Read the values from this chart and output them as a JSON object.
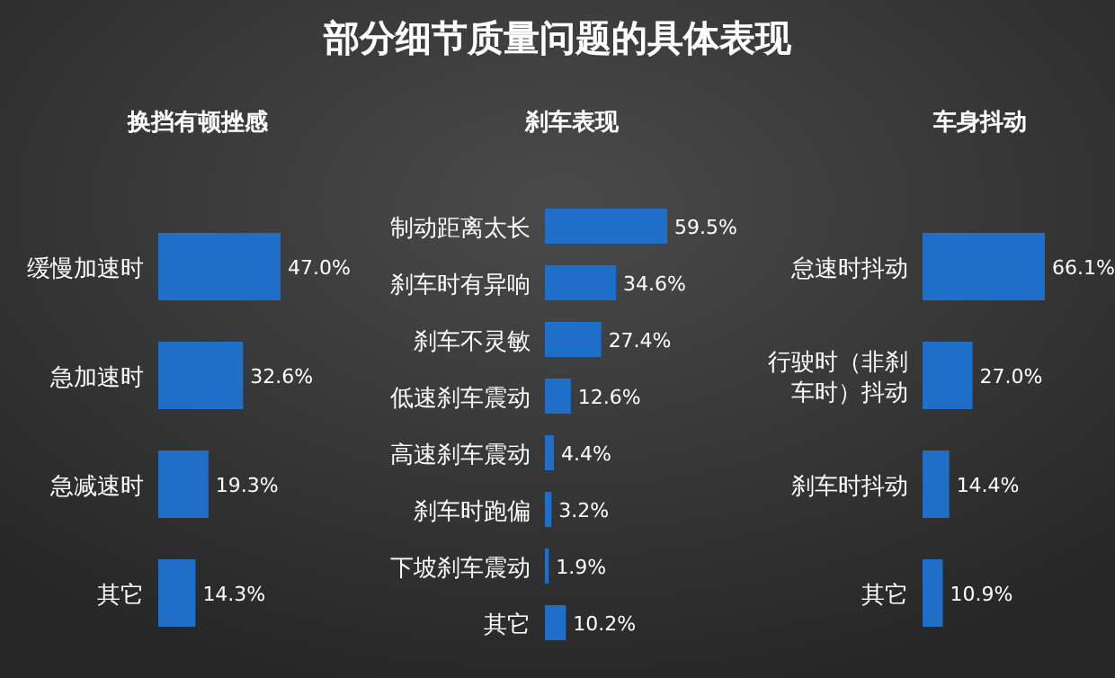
{
  "chart_data": [
    {
      "type": "bar",
      "orientation": "horizontal",
      "subtitle": "换挡有顿挫感",
      "categories": [
        "缓慢加速时",
        "急加速时",
        "急减速时",
        "其它"
      ],
      "values": [
        47.0,
        32.6,
        19.3,
        14.3
      ],
      "color": "#1f6fc8",
      "value_labels": [
        "47.0%",
        "32.6%",
        "19.3%",
        "14.3%"
      ]
    },
    {
      "type": "bar",
      "orientation": "horizontal",
      "title": "部分细节质量问题的具体表现",
      "subtitle": "刹车表现",
      "categories": [
        "制动距离太长",
        "刹车时有异响",
        "刹车不灵敏",
        "低速刹车震动",
        "高速刹车震动",
        "刹车时跑偏",
        "下坡刹车震动",
        "其它"
      ],
      "values": [
        59.5,
        34.6,
        27.4,
        12.6,
        4.4,
        3.2,
        1.9,
        10.2
      ],
      "color": "#1f6fc8",
      "value_labels": [
        "59.5%",
        "34.6%",
        "27.4%",
        "12.6%",
        "4.4%",
        "3.2%",
        "1.9%",
        "10.2%"
      ]
    },
    {
      "type": "bar",
      "orientation": "horizontal",
      "subtitle": "车身抖动",
      "categories": [
        "怠速时抖动",
        "行驶时（非刹车时）抖动",
        "刹车时抖动",
        "其它"
      ],
      "values": [
        66.1,
        27.0,
        14.4,
        10.9
      ],
      "color": "#1f6fc8",
      "value_labels": [
        "66.1%",
        "27.0%",
        "14.4%",
        "10.9%"
      ]
    }
  ]
}
